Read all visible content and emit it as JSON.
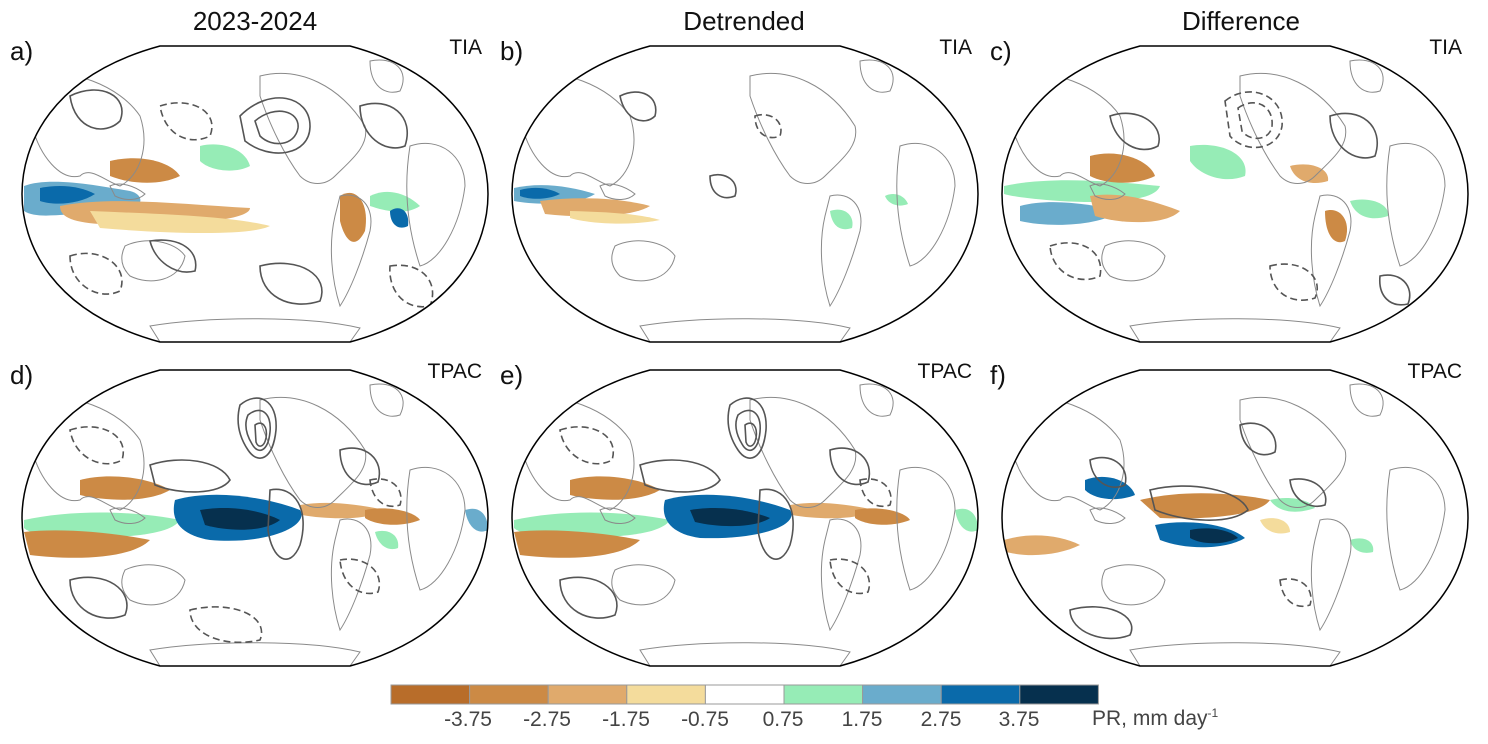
{
  "columns": [
    {
      "title": "2023-2024"
    },
    {
      "title": "Detrended"
    },
    {
      "title": "Difference"
    }
  ],
  "panels": [
    {
      "id": "a",
      "label": "a)",
      "region": "TIA"
    },
    {
      "id": "b",
      "label": "b)",
      "region": "TIA"
    },
    {
      "id": "c",
      "label": "c)",
      "region": "TIA"
    },
    {
      "id": "d",
      "label": "d)",
      "region": "TPAC"
    },
    {
      "id": "e",
      "label": "e)",
      "region": "TPAC"
    },
    {
      "id": "f",
      "label": "f)",
      "region": "TPAC"
    }
  ],
  "colorbar": {
    "colors": [
      "#b86d2a",
      "#cc8a45",
      "#e0aa6c",
      "#f4dc9c",
      "#ffffff",
      "#96ecb6",
      "#6aaccc",
      "#0a6aaa",
      "#06304e"
    ],
    "ticks": [
      "-3.75",
      "-2.75",
      "-1.75",
      "-0.75",
      "0.75",
      "1.75",
      "2.75",
      "3.75"
    ],
    "units_main": "PR, mm day",
    "units_sup": "-1"
  },
  "colors": {
    "land_outline": "#8a8a8a",
    "contour": "#555555",
    "map_border": "#000000"
  }
}
